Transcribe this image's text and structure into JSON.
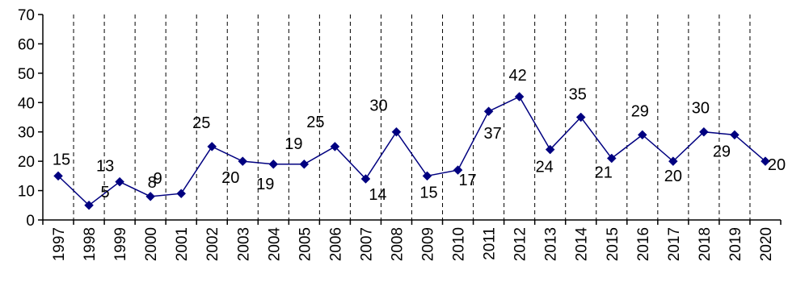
{
  "chart_data": {
    "type": "line",
    "title": "",
    "xlabel": "",
    "ylabel": "",
    "ylim": [
      0,
      70
    ],
    "yticks": [
      0,
      10,
      20,
      30,
      40,
      50,
      60,
      70
    ],
    "grid": "vertical dashed",
    "legend": "none",
    "categories": [
      "1997",
      "1998",
      "1999",
      "2000",
      "2001",
      "2002",
      "2003",
      "2004",
      "2005",
      "2006",
      "2007",
      "2008",
      "2009",
      "2010",
      "2011",
      "2012",
      "2013",
      "2014",
      "2015",
      "2016",
      "2017",
      "2018",
      "2019",
      "2020"
    ],
    "values": [
      15,
      5,
      13,
      8,
      9,
      25,
      20,
      19,
      19,
      25,
      14,
      30,
      15,
      17,
      37,
      42,
      24,
      35,
      21,
      29,
      20,
      30,
      29,
      20
    ],
    "data_labels": [
      "15",
      "5",
      "13",
      "8",
      "9",
      "25",
      "20",
      "19",
      "19",
      "25",
      "14",
      "30",
      "15",
      "17",
      "37",
      "42",
      "24",
      "35",
      "21",
      "29",
      "20",
      "30",
      "29",
      "20"
    ],
    "colors": {
      "series": "#000080",
      "axis": "#000000",
      "grid": "#000000"
    },
    "marker": "diamond"
  }
}
